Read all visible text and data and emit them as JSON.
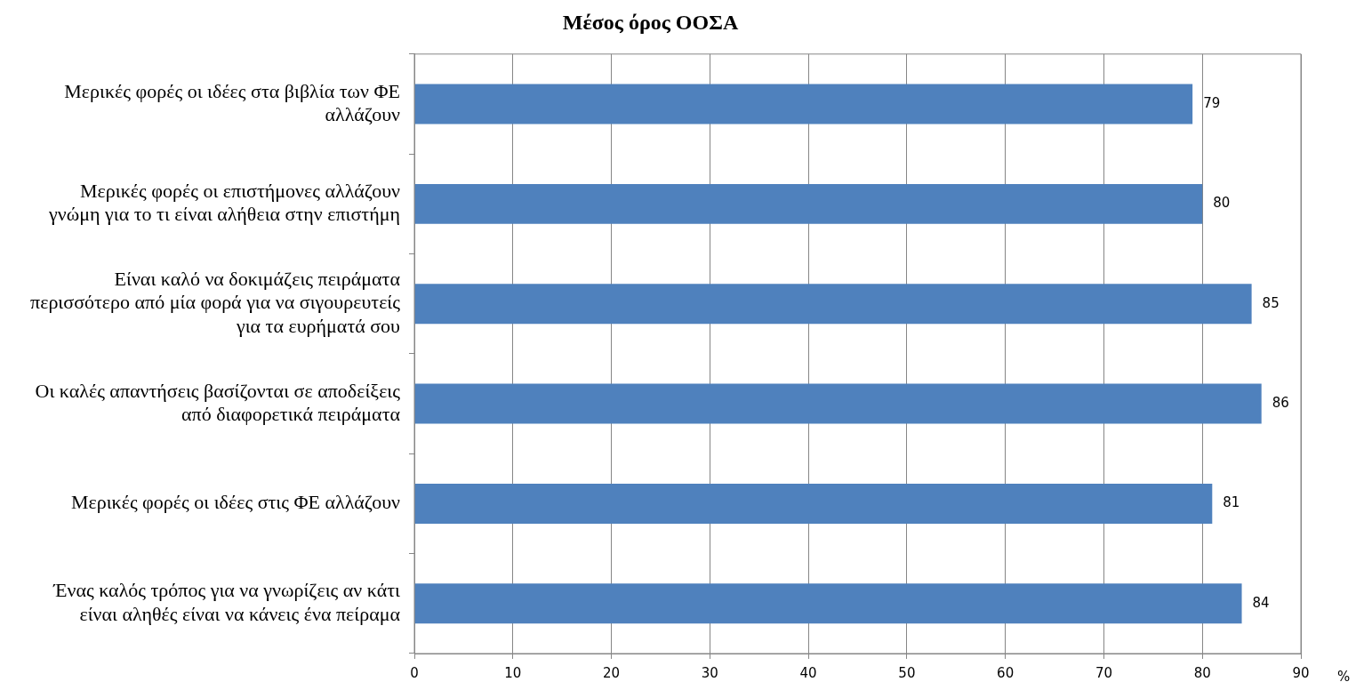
{
  "chart_data": {
    "type": "bar",
    "orientation": "horizontal",
    "title": "Μέσος όρος ΟΟΣΑ",
    "xlabel": "%",
    "categories": [
      "Μερικές φορές οι ιδέες στα βιβλία των ΦΕ αλλάζουν",
      "Μερικές φορές οι επιστήμονες αλλάζουν γνώμη για το τι είναι αλήθεια στην επιστήμη",
      "Είναι καλό να δοκιμάζεις πειράματα περισσότερο από μία φορά για να σιγουρευτείς για τα ευρήματά σου",
      "Οι καλές απαντήσεις βασίζονται σε αποδείξεις από διαφορετικά πειράματα",
      "Μερικές φορές οι ιδέες στις ΦΕ αλλάζουν",
      "Ένας καλός τρόπος για να γνωρίζεις αν κάτι είναι αληθές είναι να κάνεις ένα πείραμα"
    ],
    "values": [
      79,
      80,
      85,
      86,
      81,
      84
    ],
    "color": "#4f81bd",
    "data_labels": true,
    "xlim": [
      0,
      90
    ],
    "xticks": [
      0,
      10,
      20,
      30,
      40,
      50,
      60,
      70,
      80,
      90
    ],
    "grid": "x",
    "legend": false
  }
}
